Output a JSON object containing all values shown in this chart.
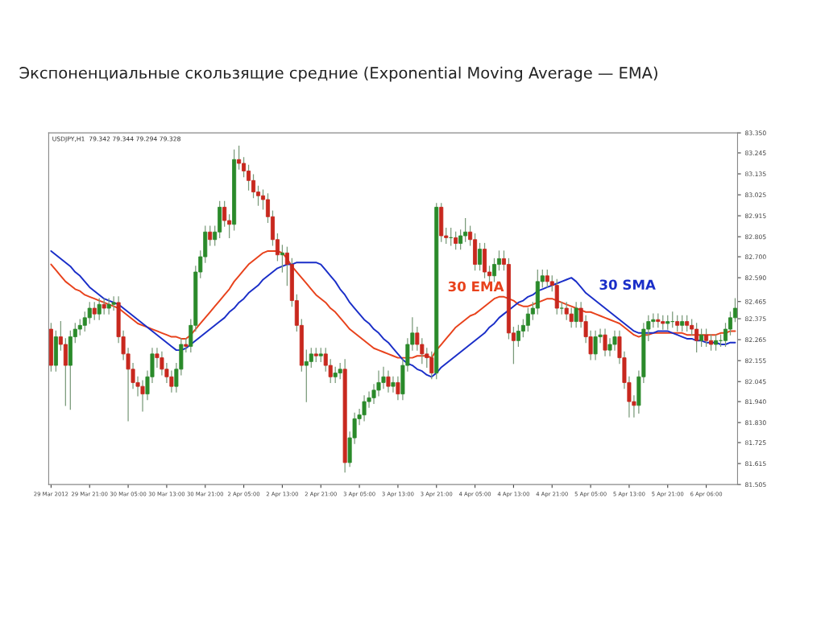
{
  "chart_data": {
    "type": "candlestick",
    "title": "Экспоненциальные скользящие средние (Exponential Moving Average — EMA)",
    "annotations": [
      "USDJPY,H1  79.342 79.344 79.294 79.328"
    ],
    "categories": [
      "29 Mar 2012",
      null,
      null,
      null,
      null,
      null,
      null,
      null,
      "29 Mar 21:00",
      null,
      null,
      null,
      null,
      null,
      null,
      null,
      "30 Mar 05:00",
      null,
      null,
      null,
      null,
      null,
      null,
      null,
      "30 Mar 13:00",
      null,
      null,
      null,
      null,
      null,
      null,
      null,
      "30 Mar 21:00",
      null,
      null,
      null,
      null,
      null,
      null,
      null,
      "2 Apr 05:00",
      null,
      null,
      null,
      null,
      null,
      null,
      null,
      "2 Apr 13:00",
      null,
      null,
      null,
      null,
      null,
      null,
      null,
      "2 Apr 21:00",
      null,
      null,
      null,
      null,
      null,
      null,
      null,
      "3 Apr 05:00",
      null,
      null,
      null,
      null,
      null,
      null,
      null,
      "3 Apr 13:00",
      null,
      null,
      null,
      null,
      null,
      null,
      null,
      "3 Apr 21:00",
      null,
      null,
      null,
      null,
      null,
      null,
      null,
      "4 Apr 05:00",
      null,
      null,
      null,
      null,
      null,
      null,
      null,
      "4 Apr 13:00",
      null,
      null,
      null,
      null,
      null,
      null,
      null,
      "4 Apr 21:00",
      null,
      null,
      null,
      null,
      null,
      null,
      null,
      "5 Apr 05:00",
      null,
      null,
      null,
      null,
      null,
      null,
      null,
      "5 Apr 13:00",
      null,
      null,
      null,
      null,
      null,
      null,
      null,
      "5 Apr 21:00",
      null,
      null,
      null,
      null,
      null,
      null,
      null,
      "6 Apr 06:00",
      null,
      null,
      null,
      null,
      null,
      null
    ],
    "colors": [
      "#c8281e",
      "#2a8a2a",
      "#c8281e",
      "#c8281e",
      "#2a8a2a",
      "#2a8a2a",
      "#2a8a2a",
      "#2a8a2a",
      "#2a8a2a",
      "#c8281e",
      "#2a8a2a",
      "#c8281e",
      "#2a8a2a",
      "#2a8a2a",
      "#c8281e",
      "#c8281e",
      "#c8281e",
      "#c8281e",
      "#c8281e",
      "#c8281e",
      "#2a8a2a",
      "#2a8a2a",
      "#c8281e",
      "#c8281e",
      "#c8281e",
      "#c8281e",
      "#2a8a2a",
      "#2a8a2a",
      "#c8281e",
      "#2a8a2a",
      "#2a8a2a",
      "#2a8a2a",
      "#2a8a2a",
      "#c8281e",
      "#2a8a2a",
      "#2a8a2a",
      "#c8281e",
      "#c8281e",
      "#2a8a2a",
      "#c8281e",
      "#c8281e",
      "#c8281e",
      "#c8281e",
      "#c8281e",
      "#c8281e",
      "#c8281e",
      "#c8281e",
      "#c8281e",
      "#2a8a2a",
      "#c8281e",
      "#c8281e",
      "#c8281e",
      "#c8281e",
      "#2a8a2a",
      "#2a8a2a",
      "#c8281e",
      "#2a8a2a",
      "#c8281e",
      "#c8281e",
      "#2a8a2a",
      "#2a8a2a",
      "#c8281e",
      "#2a8a2a",
      "#2a8a2a",
      "#2a8a2a",
      "#2a8a2a",
      "#2a8a2a",
      "#2a8a2a",
      "#2a8a2a",
      "#2a8a2a",
      "#c8281e",
      "#2a8a2a",
      "#c8281e",
      "#2a8a2a",
      "#2a8a2a",
      "#2a8a2a",
      "#c8281e",
      "#c8281e",
      "#c8281e",
      "#c8281e",
      "#2a8a2a",
      "#c8281e",
      "#c8281e",
      "#2a8a2a",
      "#c8281e",
      "#2a8a2a",
      "#2a8a2a",
      "#c8281e",
      "#c8281e",
      "#2a8a2a",
      "#c8281e",
      "#c8281e",
      "#2a8a2a",
      "#2a8a2a",
      "#c8281e",
      "#c8281e",
      "#c8281e",
      "#2a8a2a",
      "#2a8a2a",
      "#2a8a2a",
      "#2a8a2a",
      "#2a8a2a",
      "#2a8a2a",
      "#c8281e",
      "#c8281e",
      "#c8281e",
      "#2a8a2a",
      "#c8281e",
      "#c8281e",
      "#2a8a2a",
      "#c8281e",
      "#c8281e",
      "#c8281e",
      "#2a8a2a",
      "#2a8a2a",
      "#c8281e",
      "#2a8a2a",
      "#2a8a2a",
      "#c8281e",
      "#c8281e",
      "#c8281e",
      "#c8281e",
      "#2a8a2a",
      "#2a8a2a",
      "#2a8a2a",
      "#2a8a2a",
      "#c8281e",
      "#c8281e",
      "#2a8a2a",
      "#2a8a2a",
      "#c8281e",
      "#2a8a2a",
      "#c8281e",
      "#c8281e",
      "#c8281e",
      "#2a8a2a",
      "#c8281e",
      "#c8281e",
      "#2a8a2a",
      "#2a8a2a",
      "#2a8a2a",
      "#2a8a2a",
      "#2a8a2a"
    ],
    "ohlc": [
      [
        82.32,
        82.35,
        82.1,
        82.13
      ],
      [
        82.13,
        82.31,
        82.1,
        82.28
      ],
      [
        82.28,
        82.36,
        82.21,
        82.24
      ],
      [
        82.24,
        82.27,
        81.92,
        82.13
      ],
      [
        82.13,
        82.31,
        81.9,
        82.28
      ],
      [
        82.28,
        82.35,
        82.25,
        82.32
      ],
      [
        82.32,
        82.37,
        82.29,
        82.34
      ],
      [
        82.34,
        82.41,
        82.31,
        82.38
      ],
      [
        82.38,
        82.46,
        82.35,
        82.43
      ],
      [
        82.43,
        82.46,
        82.37,
        82.4
      ],
      [
        82.4,
        82.48,
        82.37,
        82.45
      ],
      [
        82.45,
        82.48,
        82.4,
        82.43
      ],
      [
        82.43,
        82.48,
        82.4,
        82.45
      ],
      [
        82.45,
        82.49,
        82.42,
        82.46
      ],
      [
        82.46,
        82.49,
        82.25,
        82.28
      ],
      [
        82.28,
        82.31,
        82.16,
        82.19
      ],
      [
        82.19,
        82.22,
        81.84,
        82.11
      ],
      [
        82.11,
        82.14,
        82.01,
        82.04
      ],
      [
        82.04,
        82.07,
        81.97,
        82.02
      ],
      [
        82.02,
        82.05,
        81.89,
        81.98
      ],
      [
        81.98,
        82.1,
        81.95,
        82.07
      ],
      [
        82.07,
        82.22,
        82.04,
        82.19
      ],
      [
        82.19,
        82.22,
        82.12,
        82.17
      ],
      [
        82.17,
        82.2,
        82.08,
        82.11
      ],
      [
        82.11,
        82.14,
        82.04,
        82.07
      ],
      [
        82.07,
        82.1,
        81.99,
        82.02
      ],
      [
        82.02,
        82.14,
        81.99,
        82.11
      ],
      [
        82.11,
        82.27,
        82.08,
        82.24
      ],
      [
        82.24,
        82.27,
        82.2,
        82.23
      ],
      [
        82.23,
        82.37,
        82.2,
        82.34
      ],
      [
        82.34,
        82.65,
        82.31,
        82.62
      ],
      [
        82.62,
        82.73,
        82.59,
        82.7
      ],
      [
        82.7,
        82.86,
        82.67,
        82.83
      ],
      [
        82.83,
        82.86,
        82.76,
        82.79
      ],
      [
        82.79,
        82.86,
        82.76,
        82.83
      ],
      [
        82.83,
        82.99,
        82.8,
        82.96
      ],
      [
        82.96,
        82.99,
        82.86,
        82.89
      ],
      [
        82.89,
        82.92,
        82.8,
        82.87
      ],
      [
        82.87,
        83.26,
        82.84,
        83.21
      ],
      [
        83.21,
        83.28,
        83.16,
        83.19
      ],
      [
        83.19,
        83.22,
        83.12,
        83.15
      ],
      [
        83.15,
        83.18,
        83.05,
        83.1
      ],
      [
        83.1,
        83.13,
        83.01,
        83.04
      ],
      [
        83.04,
        83.07,
        82.97,
        83.02
      ],
      [
        83.02,
        83.05,
        82.95,
        83.0
      ],
      [
        83.0,
        83.03,
        82.88,
        82.91
      ],
      [
        82.91,
        82.94,
        82.76,
        82.79
      ],
      [
        82.79,
        82.82,
        82.68,
        82.71
      ],
      [
        82.71,
        82.76,
        82.62,
        82.72
      ],
      [
        82.72,
        82.75,
        82.55,
        82.66
      ],
      [
        82.66,
        82.69,
        82.44,
        82.47
      ],
      [
        82.47,
        82.5,
        82.31,
        82.34
      ],
      [
        82.34,
        82.37,
        82.1,
        82.13
      ],
      [
        82.13,
        82.21,
        81.94,
        82.15
      ],
      [
        82.15,
        82.22,
        82.12,
        82.19
      ],
      [
        82.19,
        82.22,
        82.15,
        82.18
      ],
      [
        82.18,
        82.22,
        82.15,
        82.19
      ],
      [
        82.19,
        82.22,
        82.1,
        82.13
      ],
      [
        82.13,
        82.16,
        82.04,
        82.07
      ],
      [
        82.07,
        82.12,
        82.04,
        82.09
      ],
      [
        82.09,
        82.14,
        82.06,
        82.11
      ],
      [
        82.11,
        82.16,
        81.57,
        81.62
      ],
      [
        81.62,
        81.78,
        81.6,
        81.75
      ],
      [
        81.75,
        81.88,
        81.72,
        81.85
      ],
      [
        81.85,
        81.9,
        81.82,
        81.87
      ],
      [
        81.87,
        81.97,
        81.84,
        81.94
      ],
      [
        81.94,
        81.99,
        81.91,
        81.96
      ],
      [
        81.96,
        82.03,
        81.93,
        82.0
      ],
      [
        82.0,
        82.1,
        81.97,
        82.04
      ],
      [
        82.04,
        82.12,
        82.01,
        82.07
      ],
      [
        82.07,
        82.1,
        81.99,
        82.02
      ],
      [
        82.02,
        82.07,
        81.99,
        82.04
      ],
      [
        82.04,
        82.07,
        81.95,
        81.98
      ],
      [
        81.98,
        82.16,
        81.95,
        82.13
      ],
      [
        82.13,
        82.27,
        82.1,
        82.24
      ],
      [
        82.24,
        82.38,
        82.21,
        82.3
      ],
      [
        82.3,
        82.33,
        82.21,
        82.24
      ],
      [
        82.24,
        82.27,
        82.14,
        82.19
      ],
      [
        82.19,
        82.22,
        82.12,
        82.17
      ],
      [
        82.17,
        82.2,
        82.06,
        82.09
      ],
      [
        82.09,
        82.98,
        82.06,
        82.96
      ],
      [
        82.96,
        82.98,
        82.78,
        82.81
      ],
      [
        82.81,
        82.85,
        82.77,
        82.8
      ],
      [
        82.8,
        82.85,
        82.76,
        82.8
      ],
      [
        82.8,
        82.83,
        82.74,
        82.77
      ],
      [
        82.77,
        82.84,
        82.74,
        82.81
      ],
      [
        82.81,
        82.9,
        82.78,
        82.83
      ],
      [
        82.83,
        82.86,
        82.76,
        82.79
      ],
      [
        82.79,
        82.82,
        82.63,
        82.66
      ],
      [
        82.66,
        82.77,
        82.63,
        82.74
      ],
      [
        82.74,
        82.77,
        82.59,
        82.62
      ],
      [
        82.62,
        82.65,
        82.57,
        82.6
      ],
      [
        82.6,
        82.69,
        82.57,
        82.66
      ],
      [
        82.66,
        82.73,
        82.63,
        82.69
      ],
      [
        82.69,
        82.73,
        82.63,
        82.66
      ],
      [
        82.66,
        82.69,
        82.27,
        82.3
      ],
      [
        82.3,
        82.33,
        82.14,
        82.26
      ],
      [
        82.26,
        82.34,
        82.23,
        82.31
      ],
      [
        82.31,
        82.37,
        82.28,
        82.34
      ],
      [
        82.34,
        82.43,
        82.31,
        82.4
      ],
      [
        82.4,
        82.46,
        82.37,
        82.43
      ],
      [
        82.43,
        82.63,
        82.4,
        82.57
      ],
      [
        82.57,
        82.63,
        82.54,
        82.6
      ],
      [
        82.6,
        82.63,
        82.54,
        82.57
      ],
      [
        82.57,
        82.6,
        82.52,
        82.55
      ],
      [
        82.55,
        82.58,
        82.4,
        82.43
      ],
      [
        82.43,
        82.46,
        82.4,
        82.43
      ],
      [
        82.43,
        82.46,
        82.37,
        82.4
      ],
      [
        82.4,
        82.43,
        82.33,
        82.36
      ],
      [
        82.36,
        82.46,
        82.33,
        82.43
      ],
      [
        82.43,
        82.46,
        82.33,
        82.36
      ],
      [
        82.36,
        82.39,
        82.25,
        82.28
      ],
      [
        82.28,
        82.31,
        82.16,
        82.19
      ],
      [
        82.19,
        82.31,
        82.16,
        82.28
      ],
      [
        82.28,
        82.32,
        82.25,
        82.29
      ],
      [
        82.29,
        82.32,
        82.18,
        82.21
      ],
      [
        82.21,
        82.27,
        82.18,
        82.24
      ],
      [
        82.24,
        82.31,
        82.21,
        82.28
      ],
      [
        82.28,
        82.31,
        82.14,
        82.17
      ],
      [
        82.17,
        82.2,
        82.01,
        82.04
      ],
      [
        82.04,
        82.07,
        81.86,
        81.94
      ],
      [
        81.94,
        81.97,
        81.86,
        81.92
      ],
      [
        81.92,
        82.1,
        81.88,
        82.07
      ],
      [
        82.07,
        82.35,
        82.04,
        82.32
      ],
      [
        82.32,
        82.39,
        82.26,
        82.36
      ],
      [
        82.36,
        82.4,
        82.33,
        82.37
      ],
      [
        82.37,
        82.4,
        82.33,
        82.36
      ],
      [
        82.36,
        82.39,
        82.32,
        82.35
      ],
      [
        82.35,
        82.39,
        82.32,
        82.36
      ],
      [
        82.36,
        82.41,
        82.33,
        82.36
      ],
      [
        82.36,
        82.39,
        82.31,
        82.34
      ],
      [
        82.34,
        82.39,
        82.31,
        82.36
      ],
      [
        82.36,
        82.39,
        82.31,
        82.34
      ],
      [
        82.34,
        82.37,
        82.29,
        82.32
      ],
      [
        82.32,
        82.35,
        82.2,
        82.26
      ],
      [
        82.26,
        82.32,
        82.23,
        82.29
      ],
      [
        82.29,
        82.32,
        82.23,
        82.26
      ],
      [
        82.26,
        82.29,
        82.21,
        82.24
      ],
      [
        82.24,
        82.29,
        82.21,
        82.26
      ],
      [
        82.26,
        82.29,
        82.23,
        82.26
      ],
      [
        82.26,
        82.35,
        82.23,
        82.32
      ],
      [
        82.32,
        82.41,
        82.29,
        82.38
      ],
      [
        82.38,
        82.48,
        82.36,
        82.43
      ]
    ],
    "series": [
      {
        "name": "30 EMA",
        "type": "line",
        "color": "#e8421c",
        "values": [
          82.66,
          82.63,
          82.6,
          82.57,
          82.55,
          82.53,
          82.52,
          82.5,
          82.49,
          82.48,
          82.47,
          82.46,
          82.45,
          82.44,
          82.43,
          82.41,
          82.39,
          82.37,
          82.35,
          82.34,
          82.33,
          82.32,
          82.31,
          82.3,
          82.29,
          82.28,
          82.28,
          82.27,
          82.27,
          82.29,
          82.32,
          82.35,
          82.38,
          82.41,
          82.44,
          82.47,
          82.5,
          82.53,
          82.57,
          82.6,
          82.63,
          82.66,
          82.68,
          82.7,
          82.72,
          82.73,
          82.73,
          82.73,
          82.72,
          82.69,
          82.65,
          82.62,
          82.59,
          82.56,
          82.53,
          82.5,
          82.48,
          82.46,
          82.43,
          82.41,
          82.38,
          82.35,
          82.32,
          82.3,
          82.28,
          82.26,
          82.24,
          82.22,
          82.21,
          82.2,
          82.19,
          82.18,
          82.17,
          82.17,
          82.17,
          82.17,
          82.18,
          82.18,
          82.18,
          82.17,
          82.21,
          82.24,
          82.27,
          82.3,
          82.33,
          82.35,
          82.37,
          82.39,
          82.4,
          82.42,
          82.44,
          82.46,
          82.48,
          82.49,
          82.49,
          82.48,
          82.47,
          82.45,
          82.44,
          82.44,
          82.45,
          82.46,
          82.47,
          82.48,
          82.48,
          82.47,
          82.46,
          82.45,
          82.44,
          82.43,
          82.42,
          82.41,
          82.41,
          82.4,
          82.39,
          82.38,
          82.37,
          82.36,
          82.35,
          82.33,
          82.31,
          82.29,
          82.28,
          82.29,
          82.29,
          82.3,
          82.3,
          82.3,
          82.3,
          82.3,
          82.3,
          82.3,
          82.29,
          82.29,
          82.29,
          82.29,
          82.29,
          82.29,
          82.29,
          82.3,
          82.3,
          82.31,
          82.31
        ]
      },
      {
        "name": "30 SMA",
        "type": "line",
        "color": "#1a2ec8",
        "values": [
          82.73,
          82.71,
          82.69,
          82.67,
          82.65,
          82.62,
          82.6,
          82.57,
          82.54,
          82.52,
          82.5,
          82.48,
          82.47,
          82.46,
          82.45,
          82.43,
          82.41,
          82.39,
          82.37,
          82.35,
          82.33,
          82.31,
          82.29,
          82.27,
          82.25,
          82.23,
          82.21,
          82.21,
          82.22,
          82.24,
          82.26,
          82.28,
          82.3,
          82.32,
          82.34,
          82.36,
          82.38,
          82.41,
          82.43,
          82.46,
          82.48,
          82.51,
          82.53,
          82.55,
          82.58,
          82.6,
          82.62,
          82.64,
          82.65,
          82.66,
          82.66,
          82.67,
          82.67,
          82.67,
          82.67,
          82.67,
          82.66,
          82.63,
          82.6,
          82.57,
          82.53,
          82.5,
          82.46,
          82.43,
          82.4,
          82.37,
          82.35,
          82.32,
          82.3,
          82.27,
          82.25,
          82.22,
          82.19,
          82.16,
          82.14,
          82.13,
          82.11,
          82.1,
          82.08,
          82.07,
          82.09,
          82.12,
          82.14,
          82.16,
          82.18,
          82.2,
          82.22,
          82.24,
          82.26,
          82.28,
          82.3,
          82.33,
          82.35,
          82.38,
          82.4,
          82.42,
          82.44,
          82.46,
          82.47,
          82.49,
          82.5,
          82.52,
          82.53,
          82.54,
          82.55,
          82.56,
          82.57,
          82.58,
          82.59,
          82.57,
          82.54,
          82.51,
          82.49,
          82.47,
          82.45,
          82.43,
          82.41,
          82.39,
          82.37,
          82.35,
          82.33,
          82.31,
          82.3,
          82.3,
          82.3,
          82.3,
          82.31,
          82.31,
          82.31,
          82.3,
          82.29,
          82.28,
          82.27,
          82.27,
          82.26,
          82.26,
          82.25,
          82.25,
          82.25,
          82.24,
          82.24,
          82.25,
          82.25
        ]
      }
    ],
    "ylim": [
      81.505,
      83.35
    ],
    "yticks": [
      {
        "value": 83.35,
        "label": "83.350"
      },
      {
        "value": 83.245,
        "label": "83.245"
      },
      {
        "value": 83.135,
        "label": "83.135"
      },
      {
        "value": 83.025,
        "label": "83.025"
      },
      {
        "value": 82.915,
        "label": "82.915"
      },
      {
        "value": 82.805,
        "label": "82.805"
      },
      {
        "value": 82.7,
        "label": "82.700"
      },
      {
        "value": 82.59,
        "label": "82.590"
      },
      {
        "value": 82.465,
        "label": "82.465"
      },
      {
        "value": 82.375,
        "label": "82.375"
      },
      {
        "value": 82.265,
        "label": "82.265"
      },
      {
        "value": 82.155,
        "label": "82.155"
      },
      {
        "value": 82.045,
        "label": "82.045"
      },
      {
        "value": 81.94,
        "label": "81.940"
      },
      {
        "value": 81.83,
        "label": "81.830"
      },
      {
        "value": 81.725,
        "label": "81.725"
      },
      {
        "value": 81.615,
        "label": "81.615"
      },
      {
        "value": 81.505,
        "label": "81.505"
      }
    ],
    "grid": false,
    "legend": false
  }
}
